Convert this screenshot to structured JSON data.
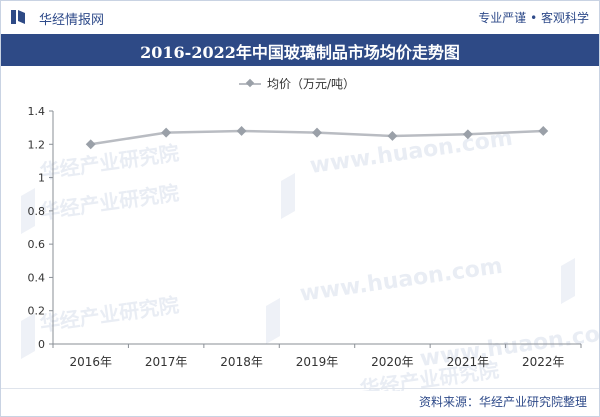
{
  "header": {
    "brand": "华经情报网",
    "tagline": "专业严谨 • 客观科学"
  },
  "chart_data": {
    "type": "line",
    "title": "2016-2022年中国玻璃制品市场均价走势图",
    "categories": [
      "2016年",
      "2017年",
      "2018年",
      "2019年",
      "2020年",
      "2021年",
      "2022年"
    ],
    "series": [
      {
        "name": "均价（万元/吨）",
        "values": [
          1.2,
          1.27,
          1.28,
          1.27,
          1.25,
          1.26,
          1.28
        ]
      }
    ],
    "y_ticks": [
      "0",
      "0.2",
      "0.4",
      "0.6",
      "0.8",
      "1",
      "1.2",
      "1.4"
    ],
    "ylim": [
      0,
      1.4
    ],
    "grid": false,
    "legend": "top",
    "series_color": "#b9bcc2",
    "marker_color": "#9aa0a8"
  },
  "footer": {
    "source": "资料来源：华经产业研究院整理"
  },
  "watermark": {
    "cn": "华经产业研究院",
    "url": "www.huaon.com"
  }
}
